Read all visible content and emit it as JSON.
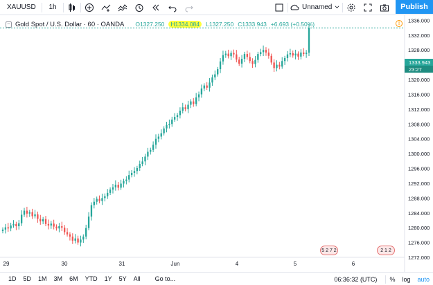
{
  "toolbar": {
    "symbol": "XAUUSD",
    "interval": "1h",
    "layout_name": "Unnamed",
    "publish_label": "Publish"
  },
  "legend": {
    "instrument": "Gold Spot / U.S. Dollar · 60 · OANDA",
    "open": "O1327.250",
    "high": "H1334.084",
    "low": "L1327.250",
    "close": "C1333.943",
    "change": "+6.693 (+0.50%)"
  },
  "price_scale": {
    "ticks": [
      "1336.000",
      "1332.000",
      "1328.000",
      "1324.000",
      "1320.000",
      "1316.000",
      "1312.000",
      "1308.000",
      "1304.000",
      "1300.000",
      "1296.000",
      "1292.000",
      "1288.000",
      "1284.000",
      "1280.000",
      "1276.000",
      "1272.000"
    ],
    "last_price": "1333.943",
    "countdown": "23:27"
  },
  "time_scale": {
    "labels": [
      "29",
      "30",
      "31",
      "Jun",
      "4",
      "5",
      "6"
    ]
  },
  "events": {
    "flag1": "5 2 7 2",
    "flag2": "2 1 2"
  },
  "bottom": {
    "ranges": [
      "1D",
      "5D",
      "1M",
      "3M",
      "6M",
      "YTD",
      "1Y",
      "5Y",
      "All"
    ],
    "goto": "Go to...",
    "clock": "06:36:32 (UTC)",
    "percent": "%",
    "log": "log",
    "auto": "auto"
  },
  "colors": {
    "up": "#26a69a",
    "down": "#ef5350",
    "accent": "#2196f3",
    "highlight": "#ffff3c"
  },
  "chart_data": {
    "type": "candlestick",
    "symbol": "XAUUSD",
    "interval": "60",
    "ylim": [
      1272,
      1337
    ],
    "closes": [
      1279.5,
      1280.1,
      1279.8,
      1280.6,
      1281.0,
      1280.4,
      1281.2,
      1283.5,
      1284.6,
      1283.8,
      1284.2,
      1283.1,
      1283.6,
      1282.4,
      1281.7,
      1282.3,
      1281.0,
      1280.6,
      1281.1,
      1280.3,
      1279.8,
      1280.4,
      1280.0,
      1278.8,
      1278.2,
      1277.6,
      1276.5,
      1277.1,
      1276.0,
      1276.8,
      1277.6,
      1279.9,
      1283.0,
      1286.1,
      1287.0,
      1287.8,
      1287.2,
      1288.0,
      1288.5,
      1289.4,
      1290.3,
      1290.9,
      1291.6,
      1290.8,
      1291.9,
      1292.6,
      1293.0,
      1294.2,
      1294.8,
      1295.3,
      1296.1,
      1297.2,
      1297.9,
      1299.2,
      1300.5,
      1301.0,
      1302.4,
      1304.0,
      1304.6,
      1305.5,
      1306.8,
      1307.7,
      1308.0,
      1309.2,
      1309.9,
      1310.4,
      1311.6,
      1312.5,
      1312.0,
      1313.2,
      1314.1,
      1313.4,
      1315.2,
      1316.0,
      1317.6,
      1318.4,
      1317.8,
      1319.2,
      1320.6,
      1321.4,
      1322.8,
      1324.9,
      1326.6,
      1327.0,
      1326.3,
      1327.2,
      1326.8,
      1325.4,
      1324.3,
      1325.6,
      1326.9,
      1326.1,
      1325.0,
      1324.2,
      1325.3,
      1326.9,
      1327.4,
      1328.0,
      1327.3,
      1326.4,
      1324.6,
      1323.1,
      1324.0,
      1323.5,
      1325.0,
      1325.8,
      1326.8,
      1327.1,
      1326.5,
      1327.0,
      1326.2,
      1327.3,
      1326.9,
      1327.25,
      1333.943
    ]
  }
}
